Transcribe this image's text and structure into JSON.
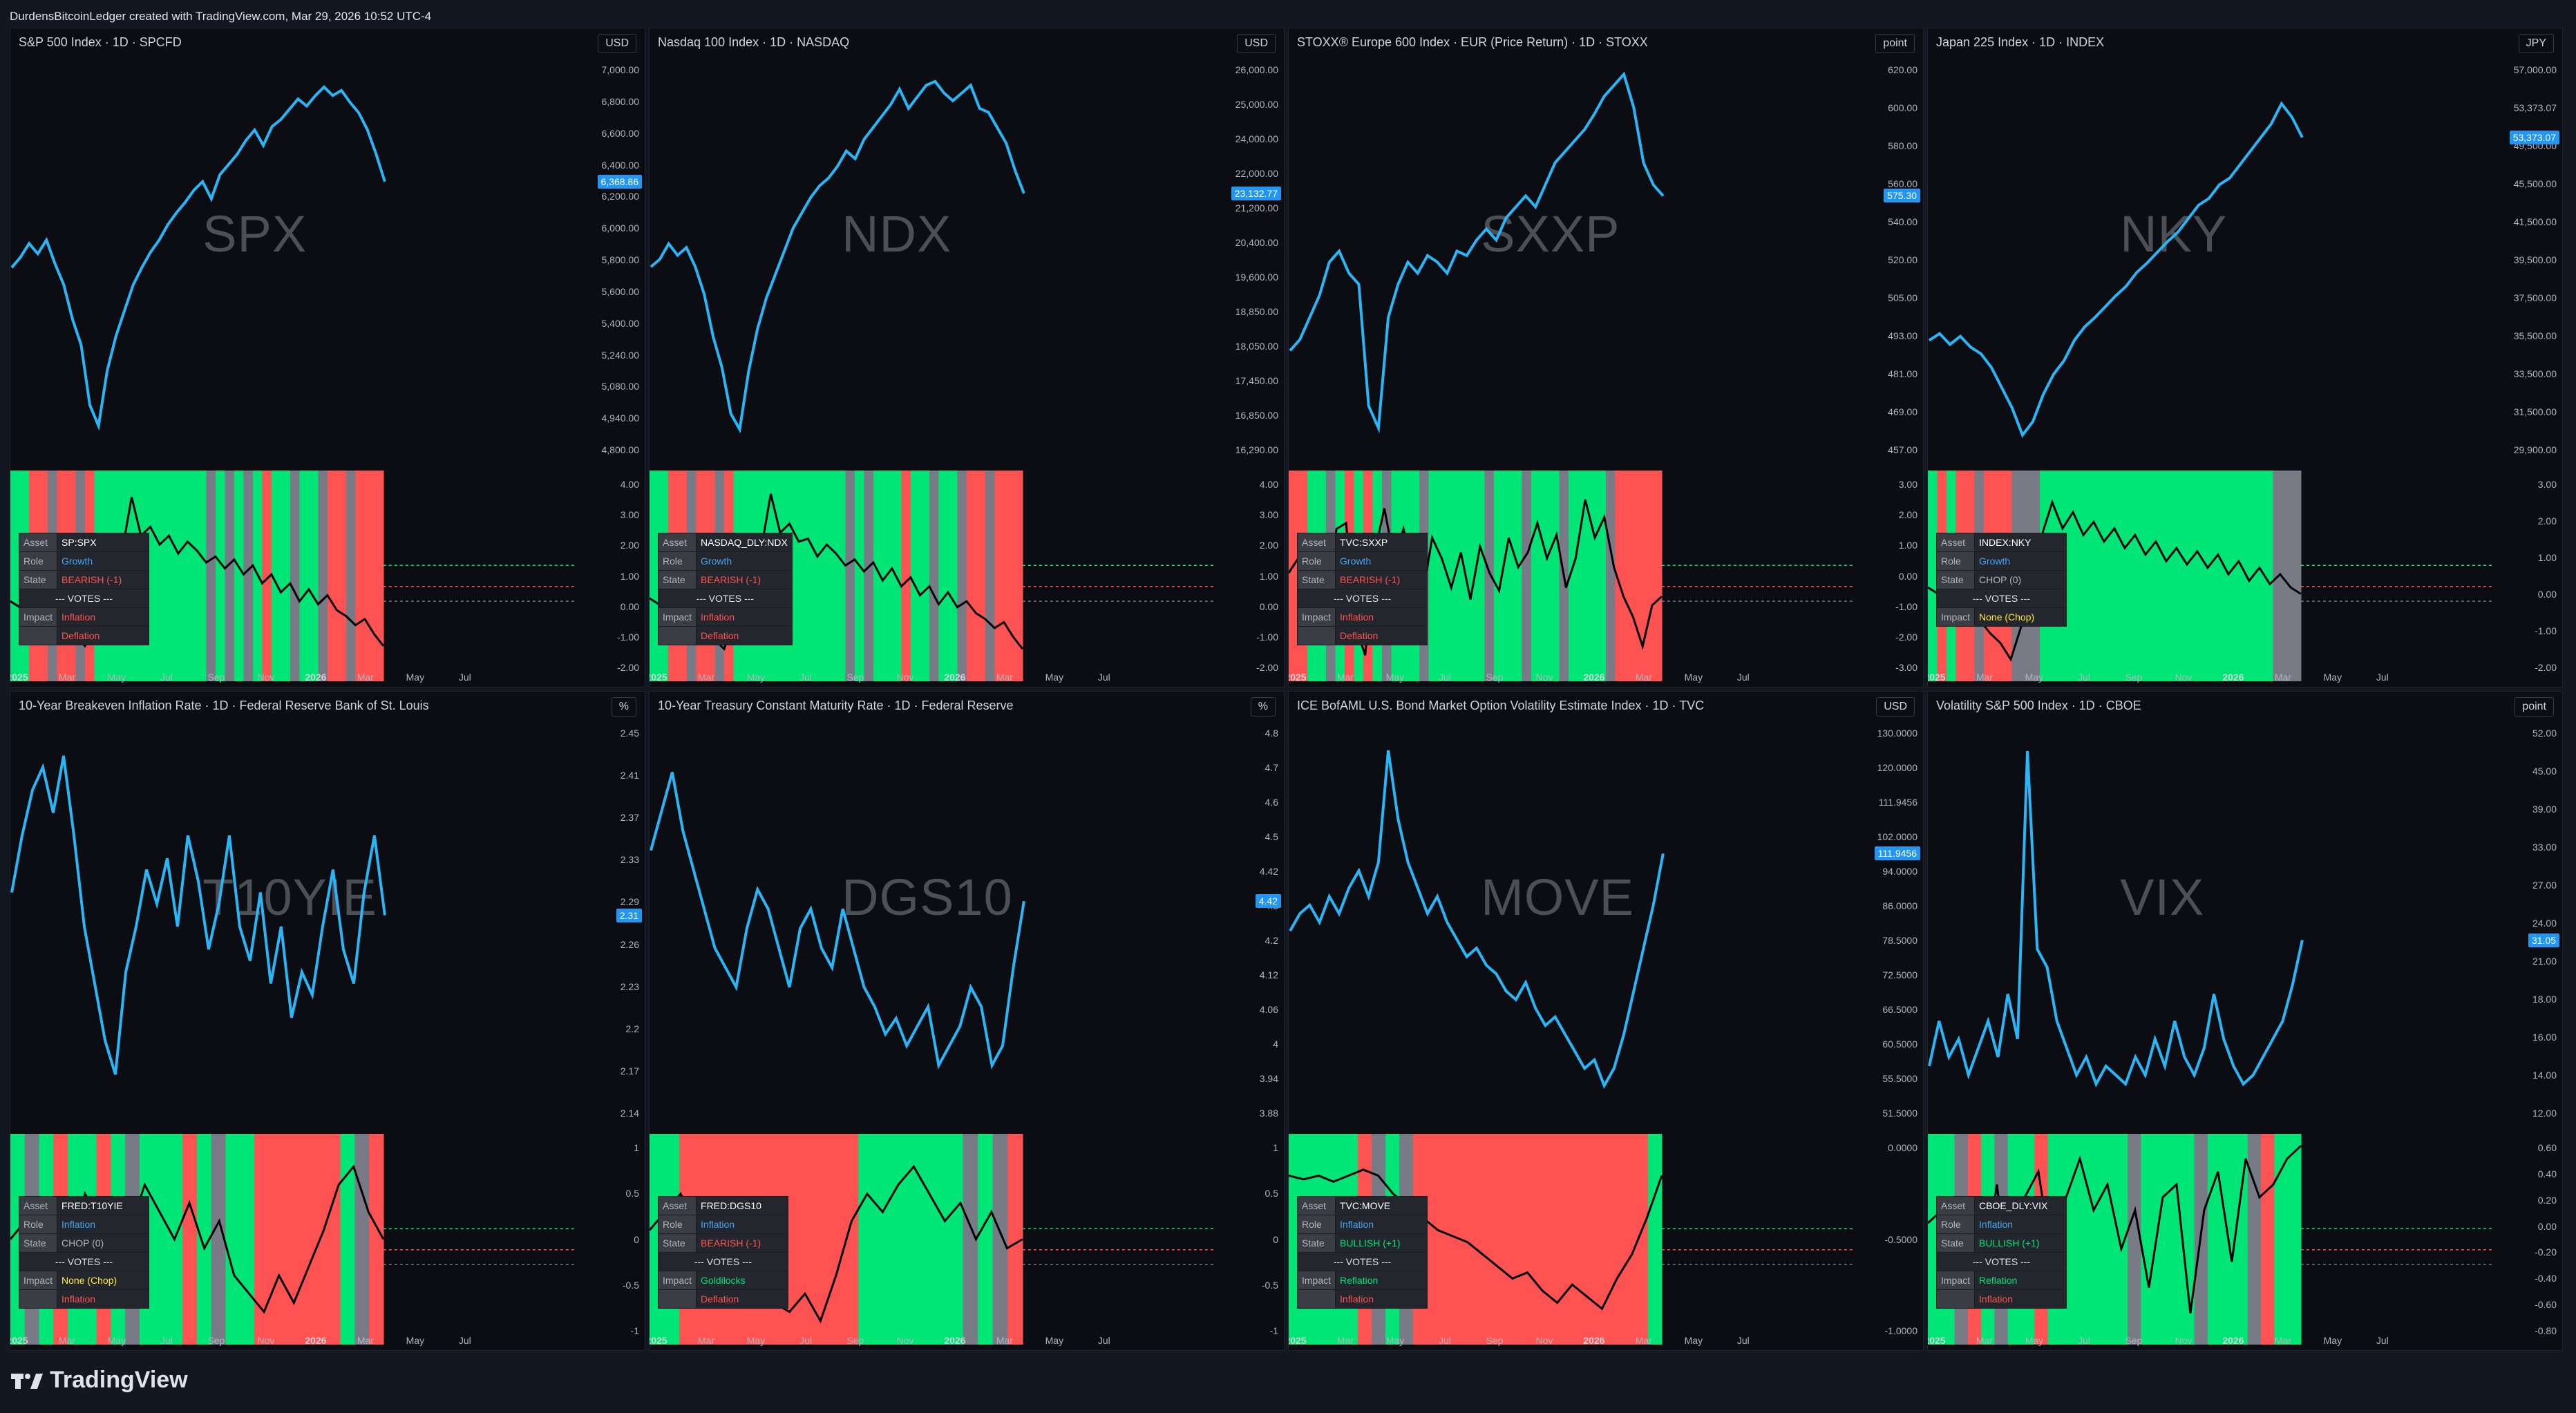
{
  "header": "DurdensBitcoinLedger created with TradingView.com, Mar 29, 2026 10:52 UTC-4",
  "footer": {
    "brand": "TradingView"
  },
  "colors": {
    "line": "#29b6f6",
    "green": "#00e676",
    "red": "#ff5252",
    "gray": "#787b86"
  },
  "table_keys": {
    "asset": "Asset",
    "role": "Role",
    "state": "State",
    "votes": "--- VOTES ---",
    "impact": "Impact"
  },
  "x_axis": {
    "labels": [
      "2025",
      "Mar",
      "May",
      "Jul",
      "Sep",
      "Nov",
      "2026",
      "Mar",
      "May",
      "Jul"
    ],
    "months_index": [
      0,
      2,
      4,
      6,
      8,
      10,
      12,
      14,
      16,
      18
    ]
  },
  "panels": [
    {
      "title": "S&P 500 Index · 1D · SPCFD",
      "currency": "USD",
      "watermark": "SPX",
      "price_ticks": [
        "7,000.00",
        "6,800.00",
        "6,600.00",
        "6,400.00",
        "6,200.00",
        "6,000.00",
        "5,800.00",
        "5,600.00",
        "5,400.00",
        "5,240.00",
        "5,080.00",
        "4,940.00",
        "4,800.00"
      ],
      "last_price": "6,368.86",
      "osc_ticks": [
        "4.00",
        "3.00",
        "2.00",
        "1.00",
        "0.00",
        "-1.00",
        "-2.00"
      ],
      "asset": "SP:SPX",
      "role": "Growth",
      "state": "BEARISH (-1)",
      "impact": [
        "Inflation",
        "Deflation"
      ],
      "state_color": "#ff5252",
      "impact_colors": [
        "#ff5252",
        "#ff5252"
      ],
      "price_series": [
        5900,
        5960,
        6040,
        5980,
        6060,
        5920,
        5800,
        5600,
        5450,
        5100,
        4980,
        5300,
        5500,
        5650,
        5800,
        5900,
        5990,
        6060,
        6150,
        6220,
        6280,
        6350,
        6400,
        6300,
        6440,
        6500,
        6560,
        6640,
        6700,
        6610,
        6720,
        6760,
        6820,
        6880,
        6840,
        6900,
        6950,
        6900,
        6930,
        6860,
        6800,
        6700,
        6560,
        6400
      ],
      "osc_series": [
        0.3,
        0.1,
        0.2,
        0.0,
        -0.2,
        -0.4,
        -0.6,
        -0.9,
        -1.2,
        -0.5,
        0.3,
        1.2,
        2.0,
        3.8,
        2.5,
        2.8,
        2.2,
        2.5,
        1.9,
        2.3,
        2.0,
        1.6,
        1.8,
        1.4,
        1.7,
        1.2,
        1.5,
        0.9,
        1.2,
        0.6,
        0.9,
        0.3,
        0.7,
        0.2,
        0.5,
        0.0,
        -0.2,
        -0.5,
        -0.3,
        -0.8,
        -1.2
      ],
      "osc_range": [
        -2.2,
        4.5
      ],
      "price_range": [
        4800,
        7050
      ],
      "bands": [
        "g",
        "g",
        "r",
        "r",
        "y",
        "r",
        "r",
        "y",
        "r",
        "g",
        "g",
        "g",
        "g",
        "g",
        "g",
        "g",
        "g",
        "g",
        "g",
        "g",
        "g",
        "y",
        "g",
        "y",
        "g",
        "y",
        "g",
        "r",
        "g",
        "g",
        "y",
        "g",
        "g",
        "y",
        "r",
        "r",
        "y",
        "r",
        "r",
        "r"
      ]
    },
    {
      "title": "Nasdaq 100 Index · 1D · NASDAQ",
      "currency": "USD",
      "watermark": "NDX",
      "price_ticks": [
        "26,000.00",
        "25,000.00",
        "24,000.00",
        "22,000.00",
        "21,200.00",
        "20,400.00",
        "19,600.00",
        "18,850.00",
        "18,050.00",
        "17,450.00",
        "16,850.00",
        "16,290.00"
      ],
      "last_price": "23,132.77",
      "osc_ticks": [
        "4.00",
        "3.00",
        "2.00",
        "1.00",
        "0.00",
        "-1.00",
        "-2.00"
      ],
      "asset": "NASDAQ_DLY:NDX",
      "role": "Growth",
      "state": "BEARISH (-1)",
      "impact": [
        "Inflation",
        "Deflation"
      ],
      "state_color": "#ff5252",
      "impact_colors": [
        "#ff5252",
        "#ff5252"
      ],
      "price_series": [
        21200,
        21400,
        21800,
        21500,
        21700,
        21200,
        20500,
        19400,
        18600,
        17400,
        17000,
        18500,
        19600,
        20400,
        21000,
        21600,
        22200,
        22600,
        23000,
        23300,
        23500,
        23800,
        24200,
        24000,
        24500,
        24800,
        25100,
        25400,
        25800,
        25300,
        25600,
        25900,
        26000,
        25700,
        25500,
        25700,
        25900,
        25300,
        25200,
        24800,
        24400,
        23700,
        23100
      ],
      "osc_series": [
        0.4,
        0.2,
        0.3,
        0.0,
        -0.2,
        -0.5,
        -0.8,
        -1.0,
        -1.3,
        -0.4,
        0.5,
        1.4,
        2.1,
        3.9,
        2.6,
        2.9,
        2.3,
        2.4,
        1.8,
        2.2,
        1.9,
        1.5,
        1.7,
        1.3,
        1.6,
        1.0,
        1.4,
        0.8,
        1.1,
        0.5,
        0.8,
        0.2,
        0.6,
        0.1,
        0.3,
        -0.1,
        -0.3,
        -0.6,
        -0.4,
        -0.9,
        -1.3
      ],
      "osc_range": [
        -2.2,
        4.5
      ],
      "price_range": [
        16290,
        26300
      ],
      "bands": [
        "g",
        "g",
        "r",
        "r",
        "y",
        "r",
        "r",
        "y",
        "r",
        "g",
        "g",
        "g",
        "g",
        "g",
        "g",
        "g",
        "g",
        "g",
        "g",
        "g",
        "g",
        "y",
        "g",
        "y",
        "g",
        "g",
        "g",
        "r",
        "g",
        "g",
        "y",
        "g",
        "g",
        "y",
        "r",
        "r",
        "y",
        "r",
        "r",
        "r"
      ]
    },
    {
      "title": "STOXX® Europe 600 Index · EUR (Price Return) · 1D · STOXX",
      "currency": "point",
      "watermark": "SXXP",
      "price_ticks": [
        "620.00",
        "600.00",
        "580.00",
        "560.00",
        "540.00",
        "520.00",
        "505.00",
        "493.00",
        "481.00",
        "469.00",
        "457.00"
      ],
      "last_price": "575.30",
      "osc_ticks": [
        "3.00",
        "2.00",
        "1.00",
        "0.00",
        "-1.00",
        "-2.00",
        "-3.00"
      ],
      "asset": "TVC:SXXP",
      "role": "Growth",
      "state": "BEARISH (-1)",
      "impact": [
        "Inflation",
        "Deflation"
      ],
      "state_color": "#ff5252",
      "impact_colors": [
        "#ff5252",
        "#ff5252"
      ],
      "price_series": [
        505,
        510,
        520,
        530,
        545,
        550,
        540,
        535,
        480,
        470,
        520,
        535,
        545,
        540,
        548,
        545,
        540,
        550,
        548,
        555,
        560,
        555,
        565,
        570,
        575,
        570,
        580,
        590,
        595,
        600,
        605,
        612,
        620,
        625,
        630,
        615,
        590,
        580,
        575
      ],
      "osc_series": [
        0.3,
        0.8,
        1.5,
        0.5,
        -0.5,
        1.8,
        2.0,
        -1.5,
        -2.5,
        1.0,
        2.5,
        0.8,
        1.8,
        0.5,
        -0.5,
        1.5,
        0.8,
        -0.2,
        1.0,
        -0.6,
        1.2,
        0.3,
        -0.3,
        1.5,
        0.5,
        1.0,
        2.0,
        0.8,
        1.6,
        -0.2,
        0.8,
        2.8,
        1.5,
        2.2,
        0.5,
        -0.5,
        -1.2,
        -2.2,
        -0.8,
        -0.5
      ],
      "osc_range": [
        -3.2,
        3.6
      ],
      "price_range": [
        457,
        632
      ],
      "bands": [
        "r",
        "r",
        "g",
        "g",
        "y",
        "g",
        "r",
        "g",
        "r",
        "g",
        "y",
        "g",
        "g",
        "g",
        "y",
        "g",
        "g",
        "g",
        "g",
        "g",
        "g",
        "y",
        "g",
        "g",
        "g",
        "y",
        "g",
        "g",
        "g",
        "y",
        "g",
        "g",
        "g",
        "g",
        "y",
        "r",
        "r",
        "r",
        "r",
        "r"
      ]
    },
    {
      "title": "Japan 225 Index · 1D · INDEX",
      "currency": "JPY",
      "watermark": "NKY",
      "price_ticks": [
        "57,000.00",
        "53,373.07",
        "49,500.00",
        "45,500.00",
        "41,500.00",
        "39,500.00",
        "37,500.00",
        "35,500.00",
        "33,500.00",
        "31,500.00",
        "29,900.00"
      ],
      "last_price": "53,373.07",
      "osc_ticks": [
        "3.00",
        "2.00",
        "1.00",
        "0.00",
        "-1.00",
        "-2.00"
      ],
      "asset": "INDEX:NKY",
      "role": "Growth",
      "state": "CHOP (0)",
      "impact": [
        "None (Chop)"
      ],
      "state_color": "#b2b5be",
      "impact_colors": [
        "#ffeb3b"
      ],
      "price_series": [
        38500,
        39000,
        38200,
        38800,
        38000,
        37500,
        36500,
        35000,
        33500,
        31500,
        32500,
        34500,
        36000,
        37000,
        38500,
        39500,
        40200,
        41000,
        41800,
        42500,
        43500,
        44200,
        45000,
        45800,
        46500,
        47500,
        48500,
        49000,
        50000,
        50500,
        51500,
        52500,
        53500,
        54500,
        56000,
        55000,
        53500
      ],
      "osc_series": [
        0.2,
        0.0,
        -0.3,
        0.1,
        -0.5,
        -0.8,
        -1.2,
        -1.5,
        -2.0,
        -1.0,
        0.5,
        1.8,
        2.8,
        2.0,
        2.5,
        1.8,
        2.2,
        1.6,
        2.0,
        1.4,
        1.8,
        1.2,
        1.6,
        1.0,
        1.4,
        0.9,
        1.3,
        0.8,
        1.2,
        0.6,
        1.0,
        0.4,
        0.8,
        0.3,
        0.6,
        0.2,
        0.0
      ],
      "osc_range": [
        -2.5,
        3.6
      ],
      "price_range": [
        29900,
        58500
      ],
      "bands": [
        "g",
        "r",
        "g",
        "r",
        "r",
        "y",
        "r",
        "r",
        "r",
        "y",
        "y",
        "y",
        "g",
        "g",
        "g",
        "g",
        "g",
        "g",
        "g",
        "g",
        "g",
        "g",
        "g",
        "g",
        "g",
        "g",
        "g",
        "g",
        "g",
        "g",
        "g",
        "g",
        "g",
        "g",
        "g",
        "g",
        "g",
        "y",
        "y",
        "y"
      ]
    },
    {
      "title": "10-Year Breakeven Inflation Rate · 1D · Federal Reserve Bank of St. Louis",
      "currency": "%",
      "watermark": "T10YIE",
      "price_ticks": [
        "2.45",
        "2.41",
        "2.37",
        "2.33",
        "2.29",
        "2.26",
        "2.23",
        "2.2",
        "2.17",
        "2.14"
      ],
      "last_price": "2.31",
      "osc_ticks": [
        "1",
        "0.5",
        "0",
        "-0.5",
        "-1"
      ],
      "asset": "FRED:T10YIE",
      "role": "Inflation",
      "state": "CHOP (0)",
      "impact": [
        "None (Chop)",
        "Inflation"
      ],
      "state_color": "#b2b5be",
      "impact_colors": [
        "#ffeb3b",
        "#ff5252"
      ],
      "price_series": [
        2.33,
        2.38,
        2.42,
        2.44,
        2.4,
        2.45,
        2.38,
        2.3,
        2.25,
        2.2,
        2.17,
        2.26,
        2.3,
        2.35,
        2.32,
        2.36,
        2.3,
        2.38,
        2.34,
        2.28,
        2.32,
        2.38,
        2.3,
        2.27,
        2.33,
        2.25,
        2.3,
        2.22,
        2.26,
        2.24,
        2.3,
        2.35,
        2.28,
        2.25,
        2.33,
        2.38,
        2.31
      ],
      "osc_series": [
        0.0,
        0.2,
        0.1,
        0.3,
        -0.2,
        0.5,
        0.2,
        -0.3,
        0.1,
        0.6,
        0.3,
        0.0,
        0.4,
        -0.1,
        0.2,
        -0.4,
        -0.6,
        -0.8,
        -0.4,
        -0.7,
        -0.3,
        0.1,
        0.6,
        0.8,
        0.3,
        0.0
      ],
      "osc_range": [
        -1.1,
        1.1
      ],
      "price_range": [
        2.13,
        2.47
      ],
      "bands": [
        "g",
        "y",
        "g",
        "r",
        "g",
        "g",
        "r",
        "g",
        "y",
        "g",
        "g",
        "g",
        "r",
        "g",
        "y",
        "g",
        "g",
        "r",
        "r",
        "r",
        "r",
        "r",
        "r",
        "g",
        "y",
        "r"
      ]
    },
    {
      "title": "10-Year Treasury Constant Maturity Rate · 1D · Federal Reserve",
      "currency": "%",
      "watermark": "DGS10",
      "price_ticks": [
        "4.8",
        "4.7",
        "4.6",
        "4.5",
        "4.42",
        "4.3",
        "4.2",
        "4.12",
        "4.06",
        "4",
        "3.94",
        "3.88"
      ],
      "last_price": "4.42",
      "osc_ticks": [
        "1",
        "0.5",
        "0",
        "-0.5",
        "-1"
      ],
      "asset": "FRED:DGS10",
      "role": "Inflation",
      "state": "BEARISH (-1)",
      "impact": [
        "Goldilocks",
        "Deflation"
      ],
      "state_color": "#ff5252",
      "impact_colors": [
        "#00e676",
        "#ff5252"
      ],
      "price_series": [
        4.55,
        4.65,
        4.75,
        4.6,
        4.5,
        4.4,
        4.3,
        4.25,
        4.2,
        4.35,
        4.45,
        4.4,
        4.3,
        4.2,
        4.35,
        4.4,
        4.3,
        4.25,
        4.4,
        4.3,
        4.2,
        4.15,
        4.08,
        4.12,
        4.05,
        4.1,
        4.15,
        4.0,
        4.05,
        4.1,
        4.2,
        4.15,
        4.0,
        4.05,
        4.25,
        4.42
      ],
      "osc_series": [
        0.1,
        0.3,
        0.5,
        0.2,
        0.0,
        -0.2,
        -0.3,
        -0.5,
        -0.7,
        -0.8,
        -0.6,
        -0.9,
        -0.4,
        0.2,
        0.5,
        0.3,
        0.6,
        0.8,
        0.5,
        0.2,
        0.4,
        0.0,
        0.3,
        -0.1,
        0.0
      ],
      "osc_range": [
        -1.1,
        1.1
      ],
      "price_range": [
        3.86,
        4.85
      ],
      "bands": [
        "g",
        "g",
        "r",
        "r",
        "r",
        "r",
        "r",
        "r",
        "r",
        "r",
        "r",
        "r",
        "r",
        "r",
        "g",
        "g",
        "g",
        "g",
        "g",
        "g",
        "g",
        "y",
        "g",
        "y",
        "r"
      ]
    },
    {
      "title": "ICE BofAML U.S. Bond Market Option Volatility Estimate Index · 1D · TVC",
      "currency": "USD",
      "watermark": "MOVE",
      "price_ticks": [
        "130.0000",
        "120.0000",
        "111.9456",
        "102.0000",
        "94.0000",
        "86.0000",
        "78.5000",
        "72.5000",
        "66.5000",
        "60.5000",
        "55.5000",
        "51.5000"
      ],
      "last_price": "111.9456",
      "osc_ticks": [
        "0.0000",
        "-0.5000",
        "-1.0000"
      ],
      "asset": "TVC:MOVE",
      "role": "Inflation",
      "state": "BULLISH (+1)",
      "impact": [
        "Reflation",
        "Inflation"
      ],
      "state_color": "#00e676",
      "impact_colors": [
        "#00e676",
        "#ff5252"
      ],
      "price_series": [
        94,
        98,
        100,
        96,
        102,
        98,
        104,
        108,
        102,
        110,
        136,
        120,
        110,
        104,
        98,
        102,
        96,
        92,
        88,
        90,
        86,
        84,
        80,
        78,
        82,
        76,
        72,
        74,
        70,
        66,
        62,
        64,
        58,
        62,
        70,
        80,
        90,
        100,
        112
      ],
      "osc_series": [
        0.05,
        0.02,
        0.05,
        0.0,
        0.05,
        0.1,
        0.05,
        -0.1,
        -0.2,
        -0.3,
        -0.4,
        -0.45,
        -0.5,
        -0.6,
        -0.7,
        -0.8,
        -0.75,
        -0.9,
        -1.0,
        -0.85,
        -0.95,
        -1.05,
        -0.8,
        -0.6,
        -0.3,
        0.05
      ],
      "osc_range": [
        -1.3,
        0.35
      ],
      "price_range": [
        50,
        140
      ],
      "bands": [
        "g",
        "g",
        "g",
        "g",
        "g",
        "r",
        "y",
        "g",
        "y",
        "r",
        "r",
        "r",
        "r",
        "r",
        "r",
        "r",
        "r",
        "r",
        "r",
        "r",
        "r",
        "r",
        "r",
        "r",
        "r",
        "r",
        "g"
      ]
    },
    {
      "title": "Volatility S&P 500 Index · 1D · CBOE",
      "currency": "point",
      "watermark": "VIX",
      "price_ticks": [
        "52.00",
        "45.00",
        "39.00",
        "33.00",
        "27.00",
        "24.00",
        "21.00",
        "18.00",
        "16.00",
        "14.00",
        "12.00"
      ],
      "last_price": "31.05",
      "osc_ticks": [
        "0.60",
        "0.40",
        "0.20",
        "0.00",
        "-0.20",
        "-0.40",
        "-0.60",
        "-0.80"
      ],
      "asset": "CBOE_DLY:VIX",
      "role": "Inflation",
      "state": "BULLISH (+1)",
      "impact": [
        "Reflation",
        "Inflation"
      ],
      "state_color": "#00e676",
      "impact_colors": [
        "#00e676",
        "#ff5252"
      ],
      "price_series": [
        17,
        22,
        18,
        20,
        16,
        19,
        22,
        18,
        25,
        20,
        52,
        30,
        28,
        22,
        19,
        16,
        18,
        15,
        17,
        16,
        15,
        18,
        16,
        20,
        17,
        22,
        18,
        16,
        19,
        25,
        20,
        17,
        15,
        16,
        18,
        20,
        22,
        26,
        31
      ],
      "osc_series": [
        0.0,
        0.1,
        -0.2,
        0.2,
        -0.4,
        0.3,
        -0.6,
        0.2,
        0.4,
        -0.3,
        0.2,
        0.5,
        0.1,
        0.3,
        -0.2,
        0.1,
        -0.5,
        0.2,
        0.3,
        -0.7,
        0.1,
        0.4,
        -0.3,
        0.5,
        0.2,
        0.3,
        0.5,
        0.6
      ],
      "osc_range": [
        -0.9,
        0.65
      ],
      "price_range": [
        11,
        54
      ],
      "bands": [
        "g",
        "g",
        "y",
        "r",
        "g",
        "y",
        "g",
        "g",
        "r",
        "g",
        "g",
        "g",
        "g",
        "g",
        "g",
        "y",
        "g",
        "g",
        "g",
        "g",
        "y",
        "g",
        "g",
        "g",
        "y",
        "r",
        "g",
        "g"
      ]
    }
  ]
}
